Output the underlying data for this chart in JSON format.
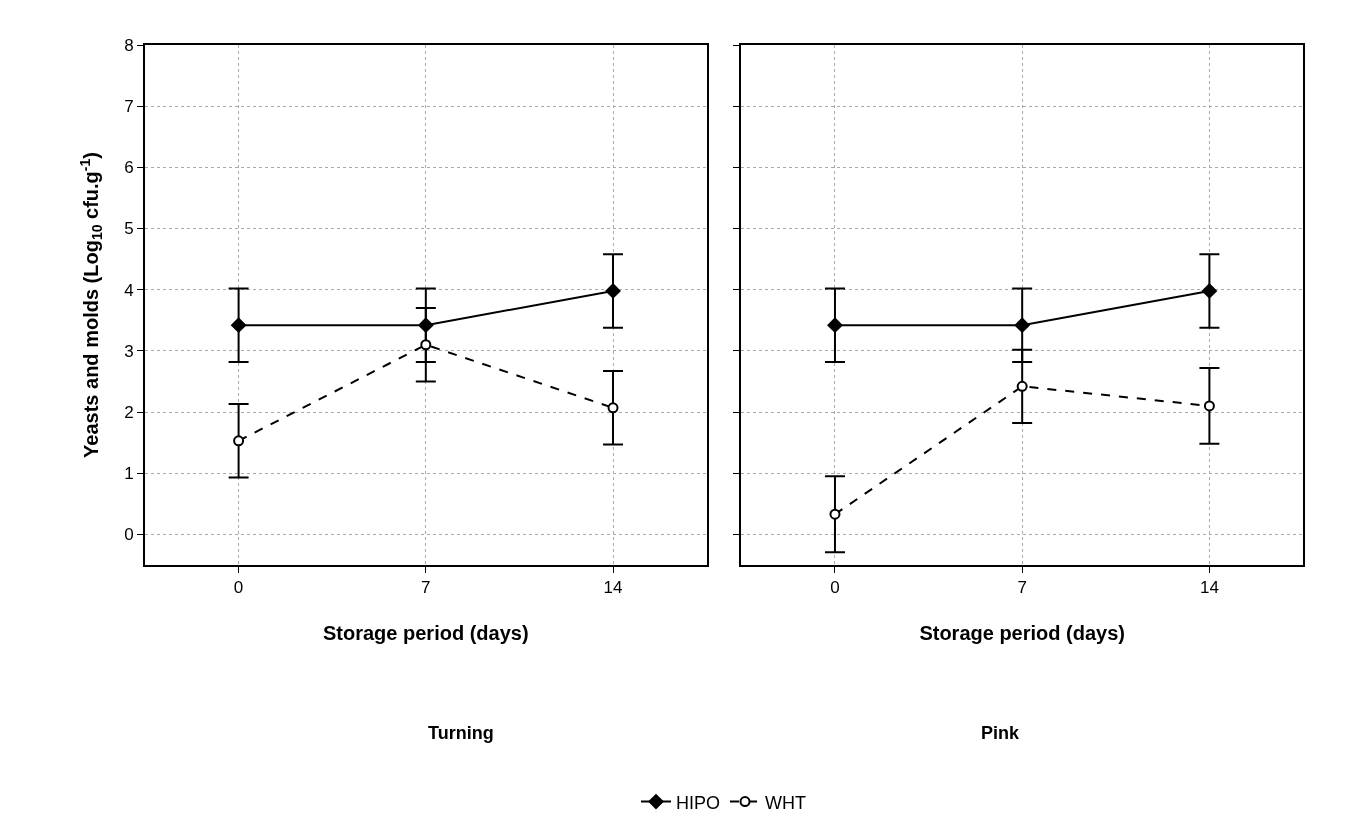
{
  "chart_data": [
    {
      "type": "line",
      "xlabel": "Storage period (days)",
      "ylabel": "Yeasts and molds (Log$_{10}$ cfu.g$^{-1}$)",
      "annotations": [
        "Turning"
      ],
      "x": [
        0,
        7,
        14
      ],
      "xlim": [
        -3.5,
        17.5
      ],
      "xticks": [
        0,
        7,
        14
      ],
      "ylim": [
        -0.5,
        8
      ],
      "yticks": [
        0,
        1,
        2,
        3,
        4,
        5,
        6,
        7,
        8
      ],
      "grid": true,
      "legend": "bottom",
      "series": [
        {
          "name": "HIPO",
          "color": "#000000",
          "values": [
            3.42,
            3.42,
            3.98
          ],
          "errors": [
            0.6,
            0.6,
            0.6
          ],
          "marker": "diamond",
          "line_style": "solid"
        },
        {
          "name": "WHT",
          "color": "#000000",
          "values": [
            1.53,
            3.1,
            2.07
          ],
          "errors": [
            0.6,
            0.6,
            0.6
          ],
          "marker": "circle",
          "line_style": "dashed"
        }
      ]
    },
    {
      "type": "line",
      "xlabel": "Storage period (days)",
      "annotations": [
        "Pink"
      ],
      "tick_labels": "x",
      "x": [
        0,
        7,
        14
      ],
      "xlim": [
        -3.5,
        17.5
      ],
      "xticks": [
        0,
        7,
        14
      ],
      "ylim": [
        -0.5,
        8
      ],
      "yticks": [
        0,
        1,
        2,
        3,
        4,
        5,
        6,
        7,
        8
      ],
      "grid": true,
      "series": [
        {
          "name": "HIPO",
          "color": "#000000",
          "values": [
            3.42,
            3.42,
            3.98
          ],
          "errors": [
            0.6,
            0.6,
            0.6
          ],
          "marker": "diamond",
          "line_style": "solid"
        },
        {
          "name": "WHT",
          "color": "#000000",
          "values": [
            0.33,
            2.42,
            2.1
          ],
          "errors": [
            0.62,
            0.6,
            0.62
          ],
          "marker": "circle",
          "line_style": "dashed"
        }
      ]
    }
  ]
}
